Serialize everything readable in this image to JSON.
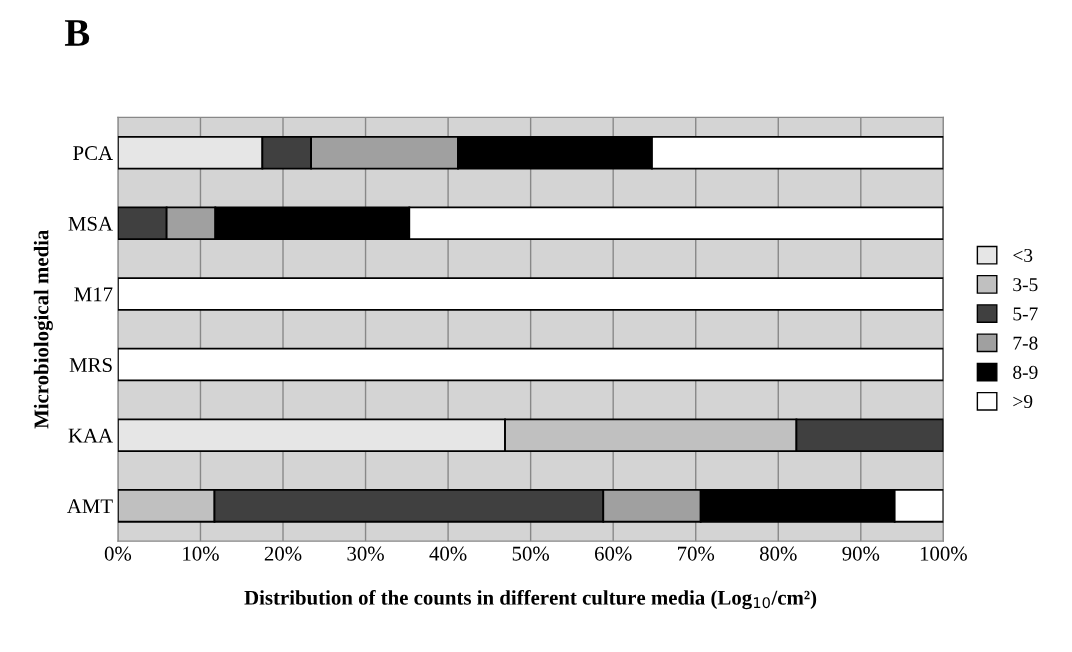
{
  "chart_data": {
    "type": "bar",
    "orientation": "horizontal",
    "stacked": true,
    "title": "B",
    "ylabel": "Microbiological media",
    "xlabel": "Distribution of the counts in different culture media (Log$_{10}$/cm²)",
    "categories": [
      "PCA",
      "MSA",
      "M17",
      "MRS",
      "KAA",
      "AMT"
    ],
    "series": [
      {
        "name": "<3",
        "color": "#e6e6e6",
        "values": [
          17.5,
          null,
          null,
          null,
          46.9,
          null
        ]
      },
      {
        "name": "3-5",
        "color": "#c0c0c0",
        "values": [
          null,
          null,
          null,
          null,
          35.3,
          11.7
        ]
      },
      {
        "name": "5-7",
        "color": "#404040",
        "values": [
          5.9,
          5.9,
          null,
          null,
          17.8,
          47.1
        ]
      },
      {
        "name": "7-8",
        "color": "#a0a0a0",
        "values": [
          17.8,
          5.9,
          null,
          null,
          null,
          11.8
        ]
      },
      {
        "name": "8-9",
        "color": "#000000",
        "values": [
          23.5,
          23.5,
          null,
          null,
          null,
          23.5
        ]
      },
      {
        "name": ">9",
        "color": "#ffffff",
        "values": [
          35.3,
          64.7,
          100,
          100,
          null,
          5.9
        ]
      }
    ],
    "xlim": [
      0,
      100
    ],
    "xticks": [
      {
        "value": 0,
        "label": "0%"
      },
      {
        "value": 10,
        "label": "10%"
      },
      {
        "value": 20,
        "label": "20%"
      },
      {
        "value": 30,
        "label": "30%"
      },
      {
        "value": 40,
        "label": "40%"
      },
      {
        "value": 50,
        "label": "50%"
      },
      {
        "value": 60,
        "label": "60%"
      },
      {
        "value": 70,
        "label": "70%"
      },
      {
        "value": 80,
        "label": "80%"
      },
      {
        "value": 90,
        "label": "90%"
      },
      {
        "value": 100,
        "label": "100%"
      }
    ],
    "grid": "x",
    "legend": "right"
  }
}
